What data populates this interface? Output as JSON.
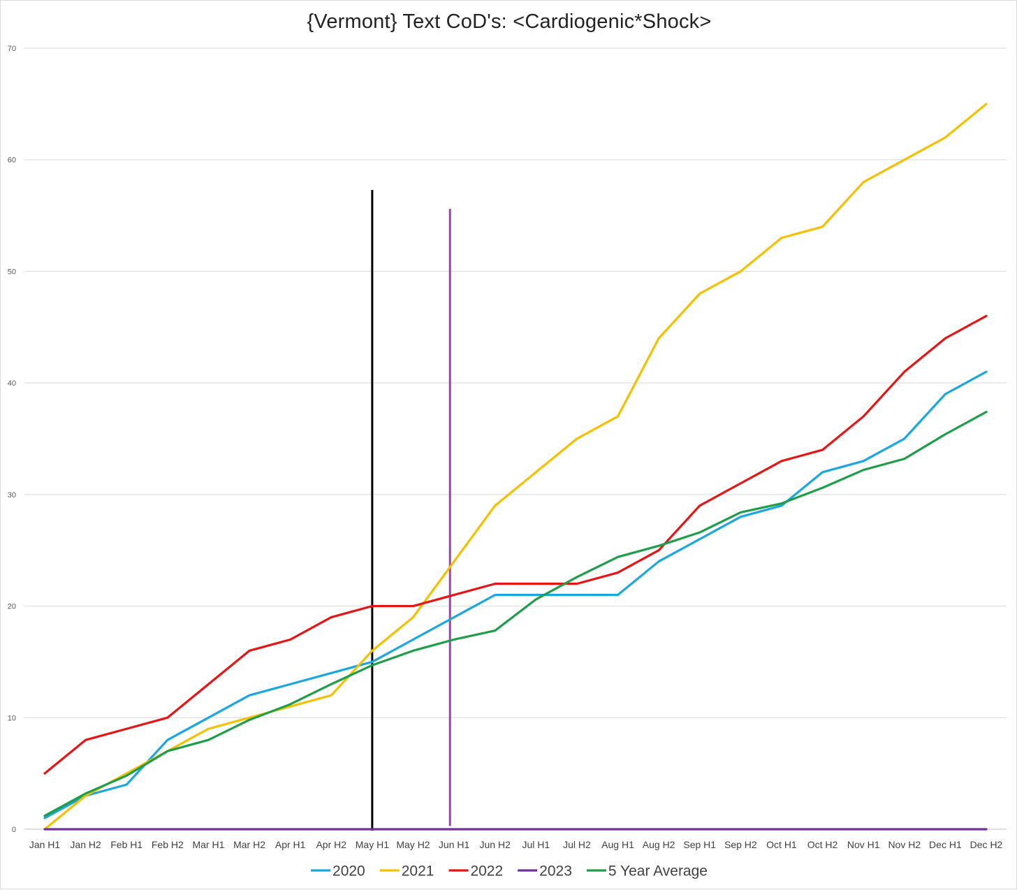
{
  "chart_data": {
    "type": "line",
    "title": "{Vermont}  Text CoD's: <Cardiogenic*Shock>",
    "xlabel": "",
    "ylabel": "",
    "ylim": [
      0,
      70
    ],
    "yticks": [
      0,
      10,
      20,
      30,
      40,
      50,
      60,
      70
    ],
    "grid": "horizontal",
    "legend_position": "bottom",
    "categories": [
      "Jan H1",
      "Jan H2",
      "Feb H1",
      "Feb H2",
      "Mar H1",
      "Mar H2",
      "Apr H1",
      "Apr H2",
      "May H1",
      "May H2",
      "Jun H1",
      "Jun H2",
      "Jul H1",
      "Jul H2",
      "Aug H1",
      "Aug H2",
      "Sep H1",
      "Sep H2",
      "Oct H1",
      "Oct H2",
      "Nov H1",
      "Nov H2",
      "Dec H1",
      "Dec H2"
    ],
    "series": [
      {
        "name": "2020",
        "color": "#1aa7e0",
        "values": [
          1,
          3,
          4,
          8,
          10,
          12,
          13,
          14,
          15,
          17,
          19,
          21,
          21,
          21,
          21,
          24,
          26,
          28,
          29,
          32,
          33,
          35,
          39,
          41
        ]
      },
      {
        "name": "2021",
        "color": "#f5c000",
        "values": [
          0,
          3,
          5,
          7,
          9,
          10,
          11,
          12,
          16,
          19,
          24,
          29,
          32,
          35,
          37,
          44,
          48,
          50,
          53,
          54,
          58,
          60,
          62,
          65
        ]
      },
      {
        "name": "2022",
        "color": "#e81414",
        "values": [
          5,
          8,
          9,
          10,
          13,
          16,
          17,
          19,
          20,
          20,
          21,
          22,
          22,
          22,
          23,
          25,
          29,
          31,
          33,
          34,
          37,
          41,
          44,
          46
        ]
      },
      {
        "name": "2023",
        "color": "#7030a0",
        "values": [
          0,
          0,
          0,
          0,
          0,
          0,
          0,
          0,
          0,
          0,
          0,
          0,
          0,
          0,
          0,
          0,
          0,
          0,
          0,
          0,
          0,
          0,
          0,
          0
        ]
      },
      {
        "name": "5 Year Average",
        "color": "#1e9e48",
        "values": [
          1.2,
          3.2,
          4.8,
          7,
          8,
          9.8,
          11.2,
          13,
          14.7,
          16,
          17,
          17.8,
          20.6,
          22.6,
          24.4,
          25.4,
          26.6,
          28.4,
          29.2,
          30.6,
          32.2,
          33.2,
          35.4,
          37.4
        ]
      }
    ],
    "vertical_markers": [
      {
        "color": "#000000",
        "x": 8.0,
        "y_top": 57.3
      },
      {
        "color": "#a040b0",
        "x": 9.9,
        "y_top": 55.6,
        "y_bottom": 0.3
      }
    ]
  }
}
